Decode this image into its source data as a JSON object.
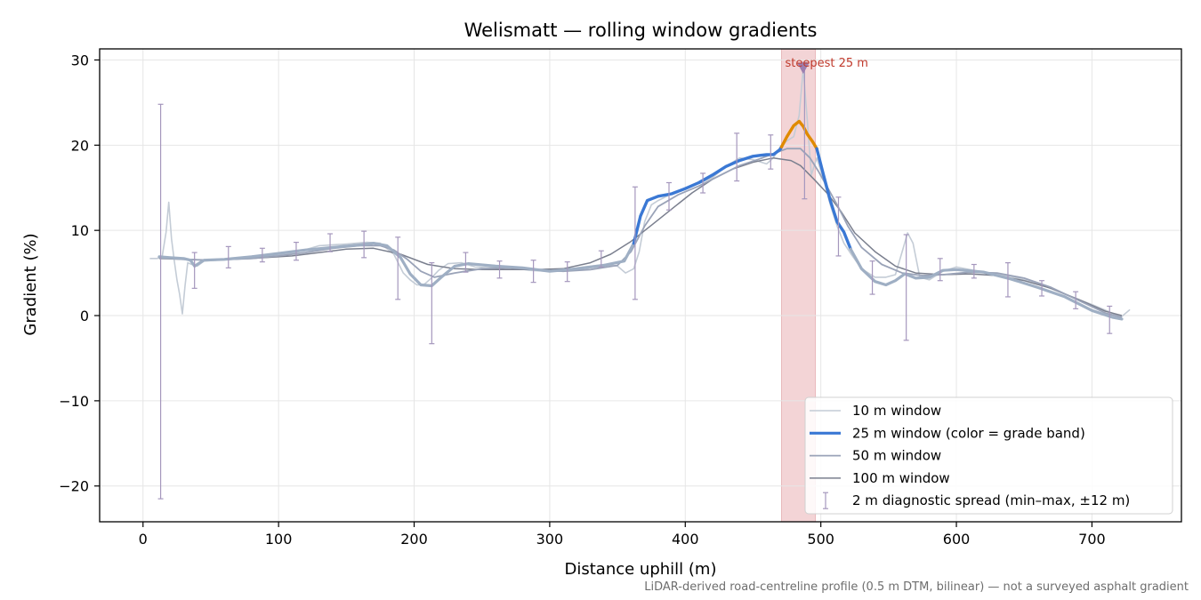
{
  "chart_data": {
    "type": "line",
    "title": "Welismatt — rolling window gradients",
    "xlabel": "Distance uphill (m)",
    "ylabel": "Gradient (%)",
    "xlim": [
      -32,
      766
    ],
    "ylim": [
      -24.2,
      31.3
    ],
    "xticks": [
      0,
      100,
      200,
      300,
      400,
      500,
      600,
      700
    ],
    "yticks": [
      -20,
      -10,
      0,
      10,
      20,
      30
    ],
    "grid": true,
    "legend_position": "bottom-right",
    "footnote": "LiDAR-derived road-centreline profile (0.5 m DTM, bilinear) — not a surveyed asphalt gradient",
    "colors": {
      "w10": "#c4ccd6",
      "w25_base": "#9fafc4",
      "w25_steep": "#3a78d4",
      "w25_hot": "#e08a00",
      "w50": "#9aa3b8",
      "w100": "#7a7f8e",
      "errorbar": "#a597bd",
      "highlight": "#f3d4d6",
      "annotation": "#c0392b",
      "marker": "#9c7fb0"
    },
    "highlight_band": {
      "x_start": 471,
      "x_end": 496,
      "label": "steepest 25 m"
    },
    "steepest_marker": {
      "x": 487,
      "y": 29
    },
    "series": [
      {
        "name": "10 m window",
        "key": "w10",
        "x": [
          5,
          10,
          14,
          17,
          19,
          21,
          23,
          25,
          27,
          29,
          31,
          33,
          36,
          40,
          45,
          55,
          70,
          90,
          110,
          130,
          150,
          165,
          175,
          185,
          192,
          197,
          202,
          207,
          212,
          218,
          225,
          235,
          245,
          255,
          270,
          285,
          300,
          310,
          320,
          330,
          340,
          350,
          356,
          362,
          366,
          370,
          375,
          380,
          390,
          400,
          410,
          420,
          430,
          440,
          450,
          460,
          465,
          470,
          475,
          480,
          484,
          487,
          490,
          493,
          497,
          502,
          507,
          512,
          517,
          522,
          530,
          540,
          548,
          555,
          560,
          564,
          568,
          573,
          580,
          590,
          600,
          620,
          640,
          660,
          680,
          700,
          715,
          722,
          728
        ],
        "y": [
          6.7,
          6.7,
          6.8,
          9.8,
          13.3,
          9,
          6.5,
          4.2,
          2.5,
          0.2,
          3.5,
          6.2,
          6,
          5.8,
          6.4,
          6.5,
          6.8,
          7,
          7.3,
          8.2,
          8.4,
          8.6,
          8.5,
          7.2,
          5,
          4.2,
          3.6,
          3.6,
          4.3,
          5.3,
          6.1,
          6.2,
          5.7,
          5.6,
          5.7,
          5.3,
          5.2,
          5.2,
          5.6,
          5.8,
          6,
          5.8,
          5,
          5.5,
          7.5,
          11,
          13,
          13.5,
          14.3,
          15,
          15.5,
          16.2,
          17.5,
          18.5,
          18.3,
          17.8,
          18.5,
          19.8,
          20.5,
          21,
          23.5,
          29,
          23,
          16.5,
          18.5,
          16,
          13,
          10.5,
          8.5,
          7.3,
          5.5,
          4.5,
          4.5,
          4.8,
          7.5,
          9.7,
          8.5,
          4.5,
          4.2,
          5.2,
          5.7,
          5.1,
          4.6,
          3.8,
          2.5,
          1.3,
          0.3,
          -0.1,
          0.7
        ]
      },
      {
        "name": "25 m window (color = grade band)",
        "key": "w25",
        "x": [
          12,
          20,
          30,
          35,
          38,
          45,
          60,
          80,
          100,
          120,
          140,
          160,
          170,
          180,
          190,
          197,
          205,
          213,
          220,
          230,
          240,
          260,
          280,
          300,
          320,
          340,
          355,
          362,
          367,
          372,
          380,
          390,
          400,
          410,
          420,
          430,
          440,
          450,
          455,
          460,
          465,
          470,
          475,
          480,
          484,
          487,
          490,
          494,
          497,
          502,
          507,
          512,
          517,
          522,
          530,
          540,
          548,
          555,
          562,
          570,
          580,
          590,
          600,
          620,
          640,
          660,
          680,
          700,
          715,
          722
        ],
        "y": [
          6.9,
          6.8,
          6.7,
          6.5,
          5.8,
          6.5,
          6.6,
          6.9,
          7.3,
          7.7,
          8,
          8.3,
          8.5,
          8.2,
          6.8,
          4.9,
          3.6,
          3.5,
          4.5,
          5.8,
          6.1,
          5.8,
          5.6,
          5.2,
          5.5,
          5.9,
          6.4,
          8.5,
          11.7,
          13.5,
          14,
          14.3,
          14.9,
          15.6,
          16.5,
          17.5,
          18.2,
          18.7,
          18.8,
          18.9,
          18.9,
          19.5,
          21,
          22.3,
          22.8,
          22.2,
          21.3,
          20.4,
          19.6,
          16.5,
          13.5,
          11,
          9.8,
          7.8,
          5.5,
          4,
          3.6,
          4.1,
          4.9,
          4.4,
          4.5,
          5.3,
          5.4,
          5.1,
          4.3,
          3.3,
          2.2,
          0.6,
          -0.2,
          -0.4
        ],
        "bands": [
          {
            "x_start": 12,
            "x_end": 362,
            "color_key": "w25_base"
          },
          {
            "x_start": 362,
            "x_end": 471,
            "color_key": "w25_steep"
          },
          {
            "x_start": 471,
            "x_end": 497,
            "color_key": "w25_hot"
          },
          {
            "x_start": 497,
            "x_end": 522,
            "color_key": "w25_steep"
          },
          {
            "x_start": 522,
            "x_end": 722,
            "color_key": "w25_base"
          }
        ]
      },
      {
        "name": "50 m window",
        "key": "w50",
        "x": [
          12,
          30,
          50,
          80,
          100,
          120,
          140,
          160,
          175,
          185,
          195,
          205,
          215,
          230,
          250,
          270,
          290,
          310,
          330,
          350,
          360,
          370,
          380,
          395,
          410,
          425,
          440,
          455,
          465,
          475,
          485,
          492,
          498,
          505,
          512,
          520,
          530,
          545,
          560,
          575,
          590,
          610,
          630,
          650,
          670,
          690,
          710,
          722
        ],
        "y": [
          6.8,
          6.6,
          6.5,
          6.7,
          7,
          7.4,
          7.9,
          8.2,
          8.2,
          7.7,
          6.6,
          5.2,
          4.5,
          5,
          5.5,
          5.6,
          5.4,
          5.2,
          5.4,
          5.9,
          7.5,
          10.5,
          12.8,
          14.2,
          15.2,
          16.4,
          17.6,
          18.4,
          19,
          19.6,
          19.6,
          18.5,
          17,
          15,
          13,
          10.5,
          8,
          6,
          5,
          4.7,
          4.8,
          5.1,
          5,
          4.4,
          3.3,
          1.8,
          0.3,
          -0.2
        ]
      },
      {
        "name": "100 m window",
        "key": "w100",
        "x": [
          12,
          30,
          50,
          80,
          110,
          130,
          150,
          170,
          190,
          210,
          230,
          250,
          270,
          290,
          310,
          330,
          345,
          360,
          375,
          390,
          405,
          420,
          435,
          450,
          465,
          478,
          485,
          495,
          505,
          515,
          525,
          540,
          555,
          570,
          590,
          610,
          630,
          650,
          670,
          690,
          710,
          722
        ],
        "y": [
          6.7,
          6.6,
          6.5,
          6.7,
          7,
          7.4,
          7.8,
          7.9,
          7.2,
          6,
          5.5,
          5.4,
          5.4,
          5.4,
          5.5,
          6.2,
          7.2,
          8.7,
          10.6,
          12.5,
          14.4,
          16,
          17.2,
          18,
          18.5,
          18.2,
          17.6,
          16,
          14.3,
          12.2,
          9.7,
          7.5,
          5.8,
          5,
          4.8,
          4.9,
          4.7,
          4.1,
          3.2,
          1.9,
          0.5,
          0
        ]
      }
    ],
    "errorbars": {
      "name": "2 m diagnostic spread (min–max, ±12 m)",
      "items": [
        {
          "x": 13,
          "min": -21.5,
          "max": 24.8
        },
        {
          "x": 38,
          "min": 3.2,
          "max": 7.4
        },
        {
          "x": 63,
          "min": 5.6,
          "max": 8.1
        },
        {
          "x": 88,
          "min": 6.3,
          "max": 7.9
        },
        {
          "x": 113,
          "min": 6.5,
          "max": 8.6
        },
        {
          "x": 138,
          "min": 7.5,
          "max": 9.6
        },
        {
          "x": 163,
          "min": 6.8,
          "max": 9.9
        },
        {
          "x": 188,
          "min": 1.9,
          "max": 9.2
        },
        {
          "x": 213,
          "min": -3.3,
          "max": 6.2
        },
        {
          "x": 238,
          "min": 5.1,
          "max": 7.4
        },
        {
          "x": 263,
          "min": 4.4,
          "max": 6.4
        },
        {
          "x": 288,
          "min": 3.9,
          "max": 6.5
        },
        {
          "x": 313,
          "min": 4,
          "max": 6.3
        },
        {
          "x": 338,
          "min": 5.7,
          "max": 7.6
        },
        {
          "x": 363,
          "min": 1.9,
          "max": 15.1
        },
        {
          "x": 388,
          "min": 12.4,
          "max": 15.6
        },
        {
          "x": 413,
          "min": 14.4,
          "max": 16.7
        },
        {
          "x": 438,
          "min": 15.8,
          "max": 21.4
        },
        {
          "x": 463,
          "min": 17.2,
          "max": 21.2
        },
        {
          "x": 488,
          "min": 13.7,
          "max": 29.7
        },
        {
          "x": 513,
          "min": 7,
          "max": 13.9
        },
        {
          "x": 538,
          "min": 2.5,
          "max": 6.4
        },
        {
          "x": 563,
          "min": -2.9,
          "max": 9.5
        },
        {
          "x": 588,
          "min": 4.1,
          "max": 6.7
        },
        {
          "x": 613,
          "min": 4.4,
          "max": 6
        },
        {
          "x": 638,
          "min": 2.2,
          "max": 6.2
        },
        {
          "x": 663,
          "min": 2.3,
          "max": 4.1
        },
        {
          "x": 688,
          "min": 0.8,
          "max": 2.8
        },
        {
          "x": 713,
          "min": -2.1,
          "max": 1.1
        }
      ]
    }
  }
}
